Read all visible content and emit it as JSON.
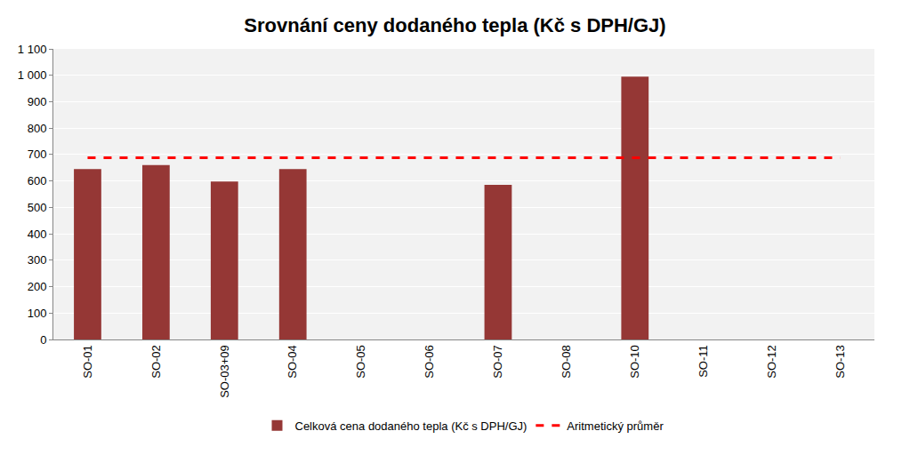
{
  "chart_data": {
    "type": "bar",
    "title": "Srovnání ceny dodaného tepla (Kč s DPH/GJ)",
    "categories": [
      "SO-01",
      "SO-02",
      "SO-03+09",
      "SO-04",
      "SO-05",
      "SO-06",
      "SO-07",
      "SO-08",
      "SO-10",
      "SO-11",
      "SO-12",
      "SO-13"
    ],
    "series": [
      {
        "name": "Celková cena dodaného tepla (Kč s DPH/GJ)",
        "type": "bar",
        "color": "#953735",
        "values": [
          645,
          660,
          598,
          645,
          null,
          null,
          585,
          null,
          995,
          null,
          null,
          null
        ]
      },
      {
        "name": "Aritmetický průměr",
        "type": "line",
        "color": "#ff0000",
        "line_style": "dashed",
        "values": [
          688,
          688,
          688,
          688,
          688,
          688,
          688,
          688,
          688,
          688,
          688,
          688
        ]
      }
    ],
    "ylim": [
      0,
      1100
    ],
    "yticks": [
      0,
      100,
      200,
      300,
      400,
      500,
      600,
      700,
      800,
      900,
      {
        "value": 1000,
        "label": "1 000"
      },
      {
        "value": 1100,
        "label": "1 100"
      }
    ],
    "grid": true,
    "legend": "bottom"
  }
}
